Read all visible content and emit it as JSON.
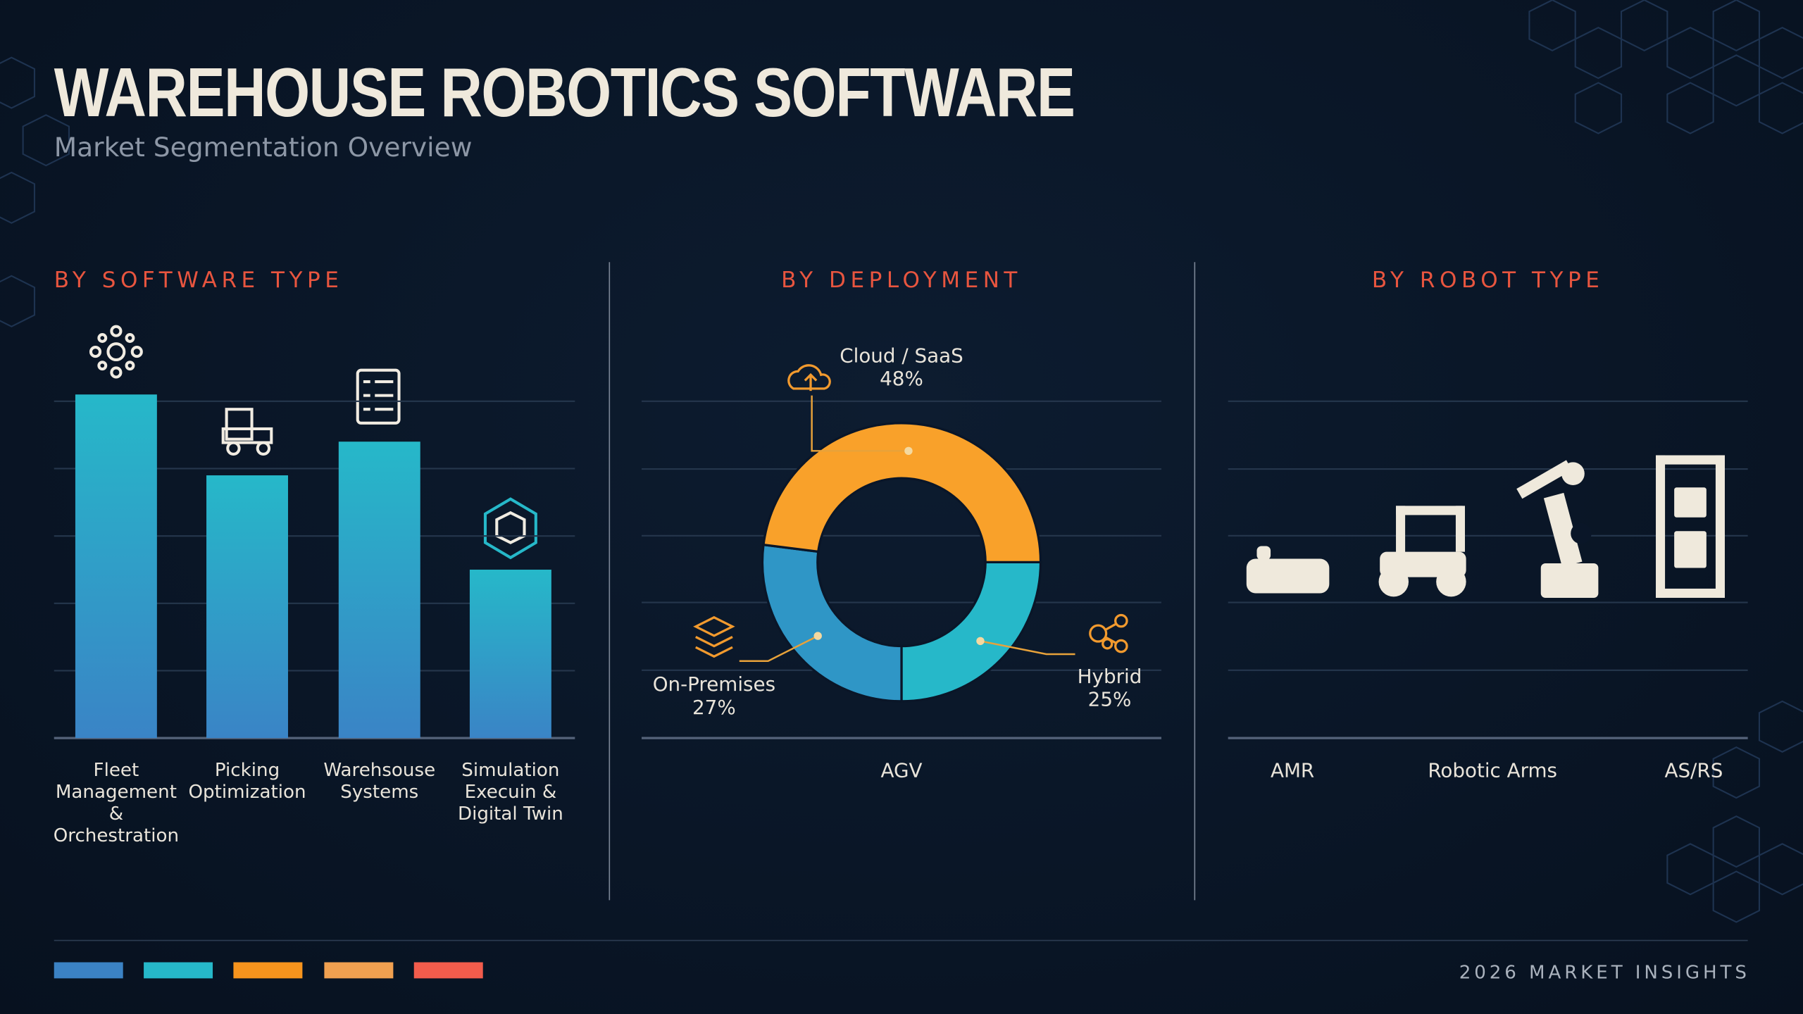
{
  "title": "WAREHOUSE ROBOTICS SOFTWARE",
  "subtitle": "Market Segmentation Overview",
  "footer": "2026 MARKET INSIGHTS",
  "chart_data": [
    {
      "type": "bar",
      "title": "BY SOFTWARE TYPE",
      "categories": [
        "Fleet Management & Orchestration",
        "Picking Optimization",
        "Warehsouse Systems",
        "Simulation Execuin & Digital Twin"
      ],
      "values": [
        5.1,
        3.9,
        4.4,
        2.5
      ],
      "color": "#26b8c9",
      "ylim": [
        0,
        5
      ],
      "yticks": [
        0,
        1,
        2,
        3,
        4,
        5
      ],
      "grid": true
    },
    {
      "type": "donut",
      "title": "BY DEPLOYMENT",
      "categories": [
        "Hybrid",
        "On-Premises",
        "Cloud / SaaS"
      ],
      "values": [
        25,
        27,
        48
      ],
      "value_labels": [
        "25%",
        "27%",
        "48%"
      ],
      "colors": [
        "#26b8c9",
        "#2f96c6",
        "#f9a12a"
      ],
      "xlabel": "AGV"
    },
    {
      "type": "pictogram",
      "title": "BY ROBOT TYPE",
      "categories": [
        "AMR",
        "Robotic Arms",
        "AS/RS"
      ]
    }
  ]
}
